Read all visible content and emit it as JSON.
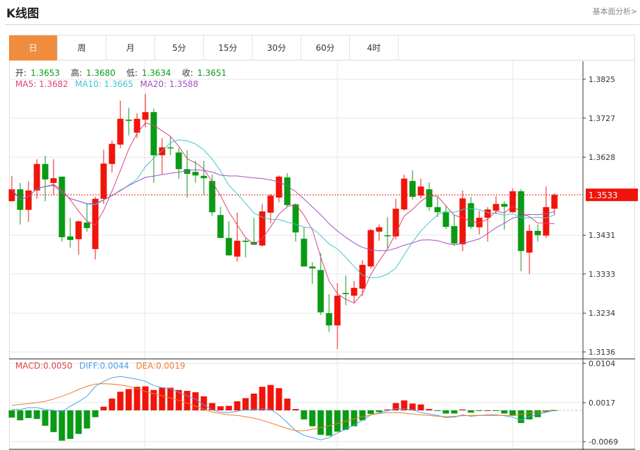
{
  "header": {
    "title": "K线图",
    "link": "基本面分析>"
  },
  "tabs": [
    {
      "label": "日",
      "active": true
    },
    {
      "label": "周"
    },
    {
      "label": "月"
    },
    {
      "label": "5分"
    },
    {
      "label": "15分"
    },
    {
      "label": "30分"
    },
    {
      "label": "60分"
    },
    {
      "label": "4时"
    }
  ],
  "ohlc_info": {
    "open_label": "开:",
    "open": "1.3653",
    "high_label": "高:",
    "high": "1.3680",
    "low_label": "低:",
    "low": "1.3634",
    "close_label": "收:",
    "close": "1.3651"
  },
  "ma_info": {
    "ma5": "MA5: 1.3682",
    "ma10": "MA10: 1.3665",
    "ma20": "MA20: 1.3588"
  },
  "macd_info": {
    "macd": "MACD:0.0050",
    "diff": "DIFF:0.0044",
    "dea": "DEA:0.0019"
  },
  "colors": {
    "up": "#f0140a",
    "down": "#0a9a14",
    "ma5": "#e0407a",
    "ma10": "#3fc6d0",
    "ma20": "#a050c0",
    "diff": "#4a9ee8",
    "dea": "#f07a28",
    "accent": "#f08c3e"
  },
  "chart_data": [
    {
      "type": "candlestick",
      "title": "",
      "current_price": "1.3533",
      "ylim": [
        1.3136,
        1.3825
      ],
      "yticks": [
        "1.3825",
        "1.3727",
        "1.3628",
        "1.3533",
        "1.3431",
        "1.3333",
        "1.3234",
        "1.3136"
      ],
      "grid": true,
      "ma_periods": [
        5,
        10,
        20
      ],
      "ohlc": [
        [
          1.3517,
          1.3581,
          1.3516,
          1.3547
        ],
        [
          1.3547,
          1.3563,
          1.3458,
          1.3495
        ],
        [
          1.3495,
          1.3567,
          1.3465,
          1.3544
        ],
        [
          1.3544,
          1.3623,
          1.3523,
          1.3611
        ],
        [
          1.3611,
          1.3632,
          1.3517,
          1.3572
        ],
        [
          1.3563,
          1.3623,
          1.3533,
          1.3575
        ],
        [
          1.3579,
          1.3579,
          1.3415,
          1.3426
        ],
        [
          1.3428,
          1.3475,
          1.34,
          1.3419
        ],
        [
          1.3421,
          1.3468,
          1.3382,
          1.3466
        ],
        [
          1.3463,
          1.3512,
          1.344,
          1.3449
        ],
        [
          1.3396,
          1.3528,
          1.337,
          1.3523
        ],
        [
          1.3523,
          1.3647,
          1.351,
          1.3612
        ],
        [
          1.3611,
          1.367,
          1.3589,
          1.3662
        ],
        [
          1.366,
          1.3771,
          1.3651,
          1.3725
        ],
        [
          1.3723,
          1.3753,
          1.3683,
          1.372
        ],
        [
          1.369,
          1.3739,
          1.3676,
          1.3725
        ],
        [
          1.3723,
          1.3788,
          1.3704,
          1.3742
        ],
        [
          1.3742,
          1.3751,
          1.3563,
          1.3633
        ],
        [
          1.3633,
          1.3676,
          1.3586,
          1.3653
        ],
        [
          1.3653,
          1.3681,
          1.3633,
          1.3651
        ],
        [
          1.364,
          1.3651,
          1.3574,
          1.3598
        ],
        [
          1.3598,
          1.3646,
          1.3526,
          1.3586
        ],
        [
          1.3591,
          1.3619,
          1.3563,
          1.3582
        ],
        [
          1.3581,
          1.3619,
          1.3533,
          1.3575
        ],
        [
          1.3568,
          1.3584,
          1.348,
          1.3489
        ],
        [
          1.3482,
          1.3503,
          1.3424,
          1.3424
        ],
        [
          1.3424,
          1.3466,
          1.3379,
          1.338
        ],
        [
          1.3377,
          1.3488,
          1.3364,
          1.3417
        ],
        [
          1.3417,
          1.3424,
          1.3375,
          1.3414
        ],
        [
          1.3414,
          1.3475,
          1.3407,
          1.3407
        ],
        [
          1.3405,
          1.351,
          1.3403,
          1.3491
        ],
        [
          1.3488,
          1.3535,
          1.3461,
          1.3531
        ],
        [
          1.3526,
          1.3582,
          1.3514,
          1.3579
        ],
        [
          1.3577,
          1.3588,
          1.3503,
          1.3507
        ],
        [
          1.3509,
          1.3512,
          1.3415,
          1.3438
        ],
        [
          1.3422,
          1.3452,
          1.3352,
          1.3352
        ],
        [
          1.3352,
          1.3363,
          1.3308,
          1.3347
        ],
        [
          1.3343,
          1.3386,
          1.3229,
          1.3236
        ],
        [
          1.3234,
          1.3282,
          1.3187,
          1.3203
        ],
        [
          1.3203,
          1.331,
          1.3143,
          1.3278
        ],
        [
          1.3285,
          1.3329,
          1.3254,
          1.3282
        ],
        [
          1.3278,
          1.3315,
          1.3261,
          1.3298
        ],
        [
          1.3296,
          1.3368,
          1.3278,
          1.3356
        ],
        [
          1.3352,
          1.3447,
          1.3347,
          1.3444
        ],
        [
          1.344,
          1.3458,
          1.3417,
          1.3451
        ],
        [
          1.3431,
          1.3477,
          1.3398,
          1.343
        ],
        [
          1.3428,
          1.3523,
          1.3421,
          1.3498
        ],
        [
          1.3496,
          1.3584,
          1.3493,
          1.3574
        ],
        [
          1.3568,
          1.3595,
          1.3521,
          1.3528
        ],
        [
          1.3531,
          1.3574,
          1.3524,
          1.3554
        ],
        [
          1.3547,
          1.3565,
          1.3493,
          1.3502
        ],
        [
          1.3502,
          1.3528,
          1.3477,
          1.3489
        ],
        [
          1.3489,
          1.3507,
          1.3447,
          1.3452
        ],
        [
          1.3454,
          1.3482,
          1.3405,
          1.341
        ],
        [
          1.3408,
          1.3544,
          1.3391,
          1.3524
        ],
        [
          1.3512,
          1.3528,
          1.3447,
          1.3452
        ],
        [
          1.3451,
          1.3493,
          1.3433,
          1.3475
        ],
        [
          1.3475,
          1.3502,
          1.3415,
          1.3496
        ],
        [
          1.3493,
          1.353,
          1.3484,
          1.351
        ],
        [
          1.351,
          1.3516,
          1.3445,
          1.3503
        ],
        [
          1.3489,
          1.3549,
          1.3488,
          1.3542
        ],
        [
          1.3542,
          1.3547,
          1.334,
          1.3391
        ],
        [
          1.3387,
          1.3458,
          1.3333,
          1.3442
        ],
        [
          1.3442,
          1.3458,
          1.3415,
          1.3431
        ],
        [
          1.343,
          1.3554,
          1.3424,
          1.3502
        ],
        [
          1.3498,
          1.3537,
          1.3482,
          1.3533
        ]
      ]
    },
    {
      "type": "bar+line",
      "title": "MACD",
      "ylim": [
        -0.0075,
        0.011
      ],
      "yticks": [
        "0.0104",
        "0.0017",
        "-0.0069"
      ],
      "macd": [
        -0.0016,
        -0.0022,
        -0.0017,
        -0.0019,
        -0.0034,
        -0.0048,
        -0.0067,
        -0.0063,
        -0.0052,
        -0.004,
        -0.0015,
        0.0008,
        0.0026,
        0.0041,
        0.0047,
        0.0052,
        0.0053,
        0.0045,
        0.005,
        0.005,
        0.0045,
        0.0043,
        0.004,
        0.0031,
        0.0016,
        0.0009,
        0.001,
        0.002,
        0.0027,
        0.0037,
        0.0052,
        0.0056,
        0.0049,
        0.0026,
        0.0003,
        -0.002,
        -0.0035,
        -0.0054,
        -0.0056,
        -0.0047,
        -0.0043,
        -0.0035,
        -0.0022,
        -0.0008,
        -0.0004,
        0.0002,
        0.0016,
        0.0022,
        0.0015,
        0.0013,
        0.0003,
        -0.0001,
        -0.0007,
        -0.0007,
        0.0002,
        -0.0005,
        -0.0001,
        0.0,
        -0.0001,
        -0.0007,
        -0.0012,
        -0.0028,
        -0.002,
        -0.0015,
        -0.0004,
        -0.0001
      ],
      "diff": [
        0.0002,
        0.0002,
        0.0006,
        0.0006,
        0.0002,
        0.0,
        -0.0003,
        0.0009,
        0.0019,
        0.0031,
        0.0053,
        0.0064,
        0.0072,
        0.0075,
        0.0072,
        0.0069,
        0.0064,
        0.0055,
        0.005,
        0.0048,
        0.004,
        0.0032,
        0.0025,
        0.0012,
        0.0001,
        -0.0004,
        -0.0005,
        -0.0002,
        0.0001,
        0.0002,
        0.0003,
        0.0002,
        -0.001,
        -0.0027,
        -0.0045,
        -0.0055,
        -0.006,
        -0.0065,
        -0.006,
        -0.005,
        -0.0042,
        -0.0032,
        -0.0022,
        -0.001,
        -0.0006,
        -0.0001,
        0.0004,
        0.0003,
        0.0001,
        -0.0005,
        -0.0008,
        -0.0011,
        -0.0016,
        -0.0015,
        -0.001,
        -0.0013,
        -0.0011,
        -0.001,
        -0.001,
        -0.0012,
        -0.0015,
        -0.0022,
        -0.0013,
        -0.0009,
        -0.0004,
        0.0
      ],
      "dea": [
        0.0011,
        0.0013,
        0.0015,
        0.0017,
        0.002,
        0.0025,
        0.0031,
        0.0038,
        0.0046,
        0.0053,
        0.0058,
        0.0059,
        0.0058,
        0.0056,
        0.0053,
        0.0048,
        0.0042,
        0.0037,
        0.0032,
        0.0027,
        0.0022,
        0.0016,
        0.0009,
        0.0003,
        -0.0004,
        -0.0007,
        -0.001,
        -0.0011,
        -0.0014,
        -0.0017,
        -0.0022,
        -0.0028,
        -0.0034,
        -0.004,
        -0.0045,
        -0.0045,
        -0.0042,
        -0.0038,
        -0.0034,
        -0.0029,
        -0.0024,
        -0.0019,
        -0.0014,
        -0.001,
        -0.0007,
        -0.0005,
        -0.0005,
        -0.0006,
        -0.0008,
        -0.001,
        -0.0011,
        -0.0013,
        -0.0014,
        -0.0013,
        -0.0012,
        -0.0011,
        -0.0011,
        -0.0011,
        -0.0011,
        -0.0011,
        -0.0011,
        -0.0009,
        -0.0006,
        -0.0004,
        -0.0001,
        0.0001
      ]
    }
  ]
}
